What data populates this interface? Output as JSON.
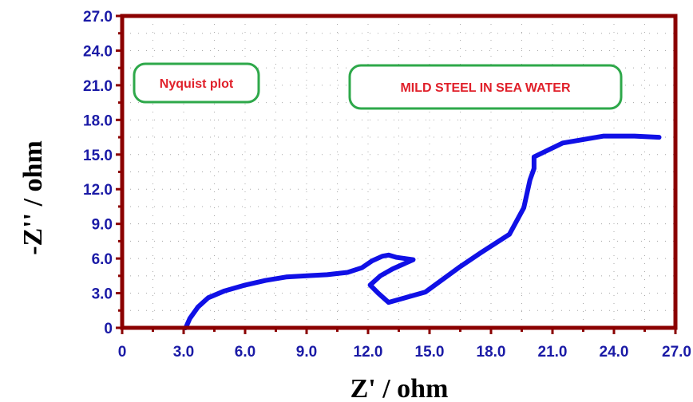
{
  "chart_data": {
    "type": "line",
    "xlabel": "Z' / ohm",
    "ylabel": "-Z'' / ohm",
    "xlim": [
      0,
      27
    ],
    "ylim": [
      0,
      27
    ],
    "x_ticks": [
      "0",
      "3.0",
      "6.0",
      "9.0",
      "12.0",
      "15.0",
      "18.0",
      "21.0",
      "24.0",
      "27.0"
    ],
    "y_ticks": [
      "0",
      "3.0",
      "6.0",
      "9.0",
      "12.0",
      "15.0",
      "18.0",
      "21.0",
      "24.0",
      "27.0"
    ],
    "grid": true,
    "annotations": [
      "Nyquist plot",
      "MILD STEEL IN SEA WATER"
    ],
    "series": [
      {
        "color": "#1010e6",
        "points": [
          [
            3.1,
            0.0
          ],
          [
            3.3,
            0.8
          ],
          [
            3.7,
            1.8
          ],
          [
            4.2,
            2.6
          ],
          [
            5.0,
            3.2
          ],
          [
            6.0,
            3.7
          ],
          [
            7.0,
            4.1
          ],
          [
            8.0,
            4.4
          ],
          [
            9.0,
            4.5
          ],
          [
            10.0,
            4.6
          ],
          [
            11.0,
            4.8
          ],
          [
            11.7,
            5.2
          ],
          [
            12.2,
            5.8
          ],
          [
            12.7,
            6.2
          ],
          [
            13.0,
            6.3
          ],
          [
            13.4,
            6.1
          ],
          [
            14.2,
            5.9
          ],
          [
            13.2,
            5.1
          ],
          [
            12.6,
            4.5
          ],
          [
            12.1,
            3.7
          ],
          [
            12.5,
            3.0
          ],
          [
            13.0,
            2.2
          ],
          [
            14.8,
            3.1
          ],
          [
            16.5,
            5.3
          ],
          [
            17.5,
            6.5
          ],
          [
            18.9,
            8.1
          ],
          [
            19.6,
            10.4
          ],
          [
            19.9,
            12.8
          ],
          [
            20.1,
            13.8
          ],
          [
            20.1,
            14.8
          ],
          [
            21.5,
            16.0
          ],
          [
            23.5,
            16.6
          ],
          [
            25.0,
            16.6
          ],
          [
            26.2,
            16.5
          ]
        ]
      }
    ]
  },
  "colors": {
    "frame": "#8b0000",
    "tick_text": "#1a1aa6",
    "annotation_text": "#e0202a",
    "annotation_border": "#2ea84a"
  }
}
